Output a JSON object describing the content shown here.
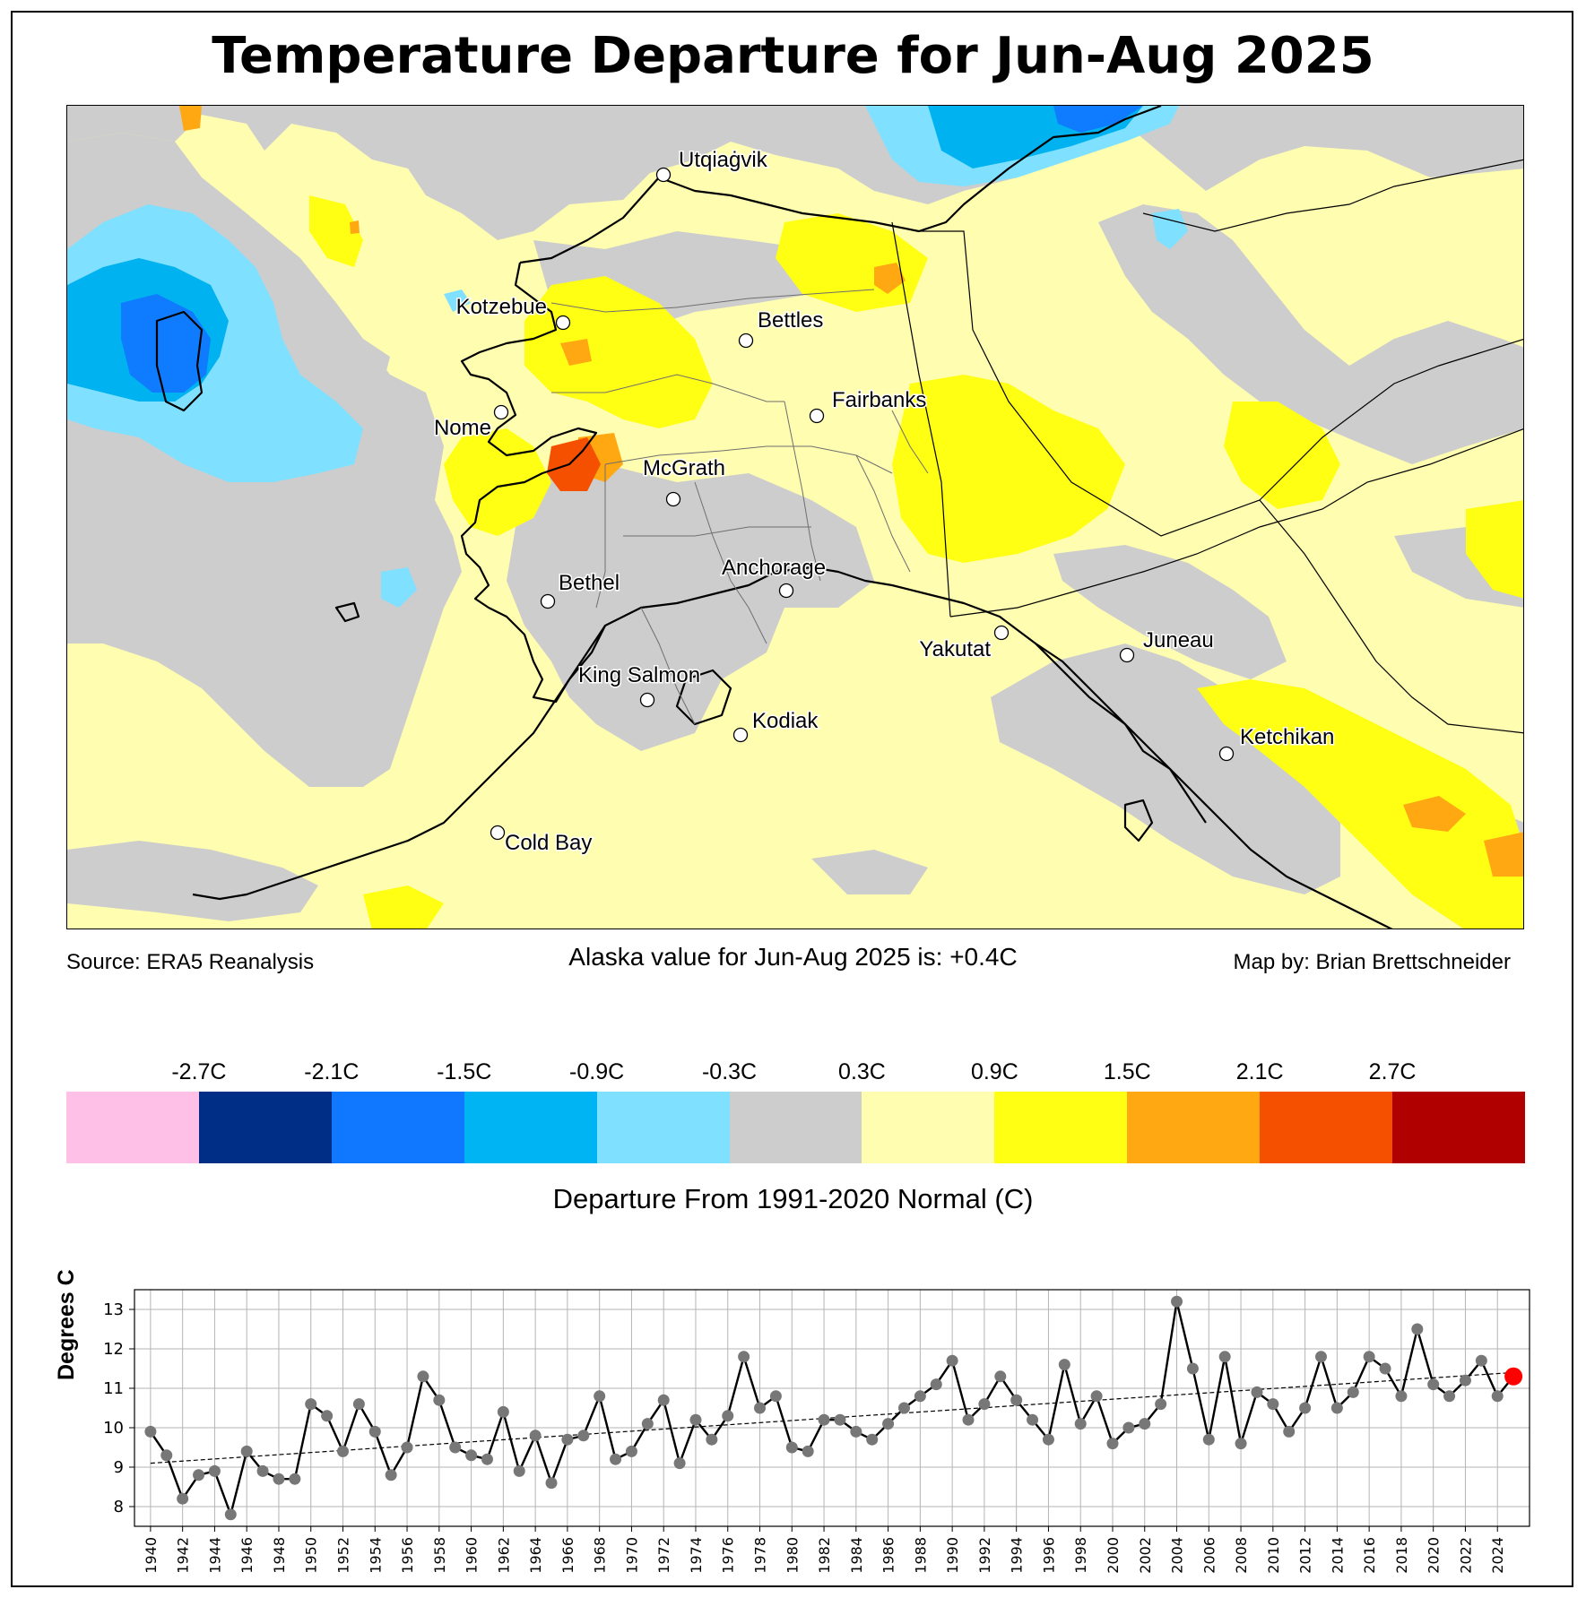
{
  "title": "Temperature Departure for Jun-Aug 2025",
  "map": {
    "colors": {
      "ocean_base": "#fffdb0",
      "gray": "#cdcdcd",
      "light_blue": "#7fe0ff",
      "sky_blue": "#00b2f0",
      "blue": "#0f7bff",
      "yellow": "#ffff14",
      "orange": "#ffa812",
      "red_orange": "#f55000"
    },
    "cities": [
      {
        "name": "Utqiaġvik"
      },
      {
        "name": "Kotzebue"
      },
      {
        "name": "Bettles"
      },
      {
        "name": "Fairbanks"
      },
      {
        "name": "Nome"
      },
      {
        "name": "McGrath"
      },
      {
        "name": "Anchorage"
      },
      {
        "name": "Bethel"
      },
      {
        "name": "Yakutat"
      },
      {
        "name": "Juneau"
      },
      {
        "name": "King Salmon"
      },
      {
        "name": "Kodiak"
      },
      {
        "name": "Ketchikan"
      },
      {
        "name": "Cold Bay"
      }
    ]
  },
  "footer": {
    "source": "Source: ERA5 Reanalysis",
    "alaska_value": "Alaska value for Jun-Aug 2025 is: +0.4C",
    "credit": "Map by: Brian Brettschneider"
  },
  "colorbar": {
    "colors": [
      "#ffc0e8",
      "#002d85",
      "#0f78ff",
      "#00b4f4",
      "#7fe0ff",
      "#cdcdcd",
      "#fffdb0",
      "#ffff14",
      "#ffa812",
      "#f55000",
      "#b00000"
    ],
    "labels": [
      "-2.7C",
      "-2.1C",
      "-1.5C",
      "-0.9C",
      "-0.3C",
      "0.3C",
      "0.9C",
      "1.5C",
      "2.1C",
      "2.7C"
    ],
    "title": "Departure From 1991-2020 Normal (C)"
  },
  "chart_data": {
    "type": "line",
    "ylabel": "Degrees C",
    "xlabel": "",
    "x_range": [
      1940,
      2025
    ],
    "ylim": [
      7.5,
      13.5
    ],
    "yticks": [
      8,
      9,
      10,
      11,
      12,
      13
    ],
    "xticks": [
      1940,
      1942,
      1944,
      1946,
      1948,
      1950,
      1952,
      1954,
      1956,
      1958,
      1960,
      1962,
      1964,
      1966,
      1968,
      1970,
      1972,
      1974,
      1976,
      1978,
      1980,
      1982,
      1984,
      1986,
      1988,
      1990,
      1992,
      1994,
      1996,
      1998,
      2000,
      2002,
      2004,
      2006,
      2008,
      2010,
      2012,
      2014,
      2016,
      2018,
      2020,
      2022,
      2024
    ],
    "grid": true,
    "years": [
      1940,
      1941,
      1942,
      1943,
      1944,
      1945,
      1946,
      1947,
      1948,
      1949,
      1950,
      1951,
      1952,
      1953,
      1954,
      1955,
      1956,
      1957,
      1958,
      1959,
      1960,
      1961,
      1962,
      1963,
      1964,
      1965,
      1966,
      1967,
      1968,
      1969,
      1970,
      1971,
      1972,
      1973,
      1974,
      1975,
      1976,
      1977,
      1978,
      1979,
      1980,
      1981,
      1982,
      1983,
      1984,
      1985,
      1986,
      1987,
      1988,
      1989,
      1990,
      1991,
      1992,
      1993,
      1994,
      1995,
      1996,
      1997,
      1998,
      1999,
      2000,
      2001,
      2002,
      2003,
      2004,
      2005,
      2006,
      2007,
      2008,
      2009,
      2010,
      2011,
      2012,
      2013,
      2014,
      2015,
      2016,
      2017,
      2018,
      2019,
      2020,
      2021,
      2022,
      2023,
      2024,
      2025
    ],
    "values": [
      9.9,
      9.3,
      8.2,
      8.8,
      8.9,
      7.8,
      9.4,
      8.9,
      8.7,
      8.7,
      10.6,
      10.3,
      9.4,
      10.6,
      9.9,
      8.8,
      9.5,
      11.3,
      10.7,
      9.5,
      9.3,
      9.2,
      10.4,
      8.9,
      9.8,
      8.6,
      9.7,
      9.8,
      10.8,
      9.2,
      9.4,
      10.1,
      10.7,
      9.1,
      10.2,
      9.7,
      10.3,
      11.8,
      10.5,
      10.8,
      9.5,
      9.4,
      10.2,
      10.2,
      9.9,
      9.7,
      10.1,
      10.5,
      10.8,
      11.1,
      11.7,
      10.2,
      10.6,
      11.3,
      10.7,
      10.2,
      9.7,
      11.6,
      10.1,
      10.8,
      9.6,
      10.0,
      10.1,
      10.6,
      13.2,
      11.5,
      9.7,
      11.8,
      9.6,
      10.9,
      10.6,
      9.9,
      10.5,
      11.8,
      10.5,
      10.9,
      11.8,
      11.5,
      10.8,
      12.5,
      11.1,
      10.8,
      11.2,
      11.7,
      10.8,
      11.3
    ],
    "trend": [
      9.1,
      11.4
    ],
    "highlight_year": 2025,
    "colors": {
      "line": "#000000",
      "point": "#777777",
      "highlight": "#ff0000",
      "grid": "#b5b5b5"
    }
  }
}
